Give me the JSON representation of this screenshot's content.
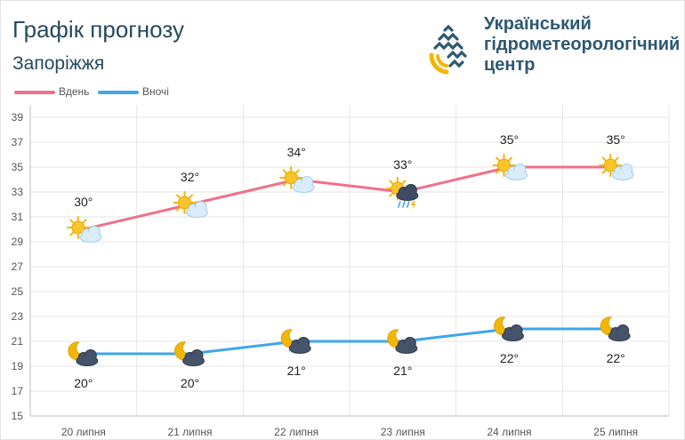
{
  "header": {
    "title": "Графік прогнозу",
    "subtitle": "Запоріжжя",
    "org_lines": [
      "Український",
      "гідрометеорологічний",
      "центр"
    ]
  },
  "colors": {
    "day": "#f0708a",
    "night": "#3ea6ea",
    "title": "#254a5d",
    "org": "#2c5873"
  },
  "chart_data": {
    "type": "line",
    "categories": [
      "20 липня",
      "21 липня",
      "22 липня",
      "23 липня",
      "24 липня",
      "25 липня"
    ],
    "series": [
      {
        "name": "Вдень",
        "values": [
          30,
          32,
          34,
          33,
          35,
          35
        ],
        "labels": [
          "30°",
          "32°",
          "34°",
          "33°",
          "35°",
          "35°"
        ],
        "icons": [
          "sun-cloud-icon",
          "sun-cloud-icon",
          "sun-cloud-icon",
          "sun-storm-icon",
          "sun-cloud-icon",
          "sun-cloud-icon"
        ]
      },
      {
        "name": "Вночі",
        "values": [
          20,
          20,
          21,
          21,
          22,
          22
        ],
        "labels": [
          "20°",
          "20°",
          "21°",
          "21°",
          "22°",
          "22°"
        ],
        "icons": [
          "moon-cloud-icon",
          "moon-cloud-icon",
          "moon-cloud-icon",
          "moon-cloud-icon",
          "moon-cloud-icon",
          "moon-cloud-icon"
        ]
      }
    ],
    "yticks": [
      15,
      17,
      19,
      21,
      23,
      25,
      27,
      29,
      31,
      33,
      35,
      37,
      39
    ],
    "ylim": [
      15,
      40
    ],
    "grid": true,
    "legend": "top-left"
  }
}
